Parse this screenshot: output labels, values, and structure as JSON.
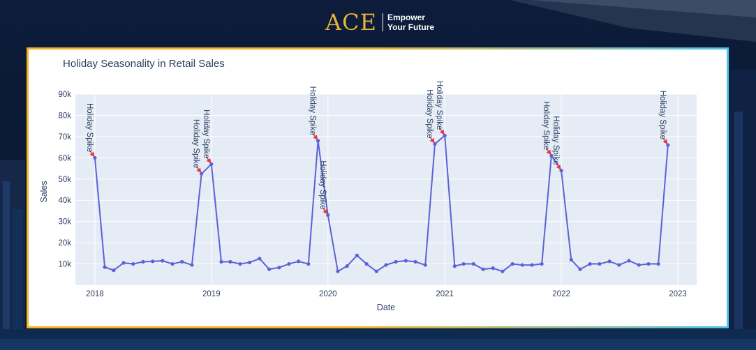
{
  "brand": {
    "logo": "ACE",
    "tagline_line1": "Empower",
    "tagline_line2": "Your Future",
    "logo_color": "#e6b23a"
  },
  "chart_data": {
    "type": "line",
    "title": "Holiday Seasonality in Retail Sales",
    "xlabel": "Date",
    "ylabel": "Sales",
    "ylim": [
      0,
      90000
    ],
    "xlim": [
      "2017-11-01",
      "2023-03-01"
    ],
    "x_ticks": [
      "2018",
      "2019",
      "2020",
      "2021",
      "2022",
      "2023"
    ],
    "y_ticks": [
      "10k",
      "20k",
      "30k",
      "40k",
      "50k",
      "60k",
      "70k",
      "80k",
      "90k"
    ],
    "grid": true,
    "line_color": "#5b62d6",
    "plot_background": "#e5ecf6",
    "arrow_color": "#e8373f",
    "series": [
      {
        "x": [
          "2018-01",
          "2018-02",
          "2018-03",
          "2018-04",
          "2018-05",
          "2018-06",
          "2018-07",
          "2018-08",
          "2018-09",
          "2018-10",
          "2018-11",
          "2018-12",
          "2019-01",
          "2019-02",
          "2019-03",
          "2019-04",
          "2019-05",
          "2019-06",
          "2019-07",
          "2019-08",
          "2019-09",
          "2019-10",
          "2019-11",
          "2019-12",
          "2020-01",
          "2020-02",
          "2020-03",
          "2020-04",
          "2020-05",
          "2020-06",
          "2020-07",
          "2020-08",
          "2020-09",
          "2020-10",
          "2020-11",
          "2020-12",
          "2021-01",
          "2021-02",
          "2021-03",
          "2021-04",
          "2021-05",
          "2021-06",
          "2021-07",
          "2021-08",
          "2021-09",
          "2021-10",
          "2021-11",
          "2021-12",
          "2022-01",
          "2022-02",
          "2022-03",
          "2022-04",
          "2022-05",
          "2022-06",
          "2022-07",
          "2022-08",
          "2022-09",
          "2022-10",
          "2022-11",
          "2022-12"
        ],
        "values": [
          60000,
          8500,
          7000,
          10500,
          10000,
          11000,
          11200,
          11500,
          10000,
          11000,
          9500,
          52500,
          57000,
          11000,
          11000,
          10000,
          10700,
          12500,
          7500,
          8300,
          10000,
          11200,
          10000,
          68000,
          33000,
          6500,
          9000,
          14000,
          10000,
          6500,
          9500,
          11000,
          11500,
          11000,
          9500,
          66500,
          70500,
          9000,
          10000,
          10000,
          7500,
          8000,
          6500,
          10000,
          9500,
          9500,
          10000,
          61000,
          54000,
          12000,
          7500,
          10000,
          10000,
          11200,
          9500,
          11500,
          9500,
          10000,
          10000,
          66000
        ]
      }
    ],
    "annotations": [
      {
        "text": "Holiday Spike",
        "x": "2018-01",
        "y": 60000
      },
      {
        "text": "Holiday Spike",
        "x": "2018-12",
        "y": 52500
      },
      {
        "text": "Holiday Spike",
        "x": "2019-01",
        "y": 57000
      },
      {
        "text": "Holiday Spike",
        "x": "2019-12",
        "y": 68000
      },
      {
        "text": "Holiday Spike",
        "x": "2020-01",
        "y": 33000
      },
      {
        "text": "Holiday Spike",
        "x": "2020-12",
        "y": 66500
      },
      {
        "text": "Holiday Spike",
        "x": "2021-01",
        "y": 70500
      },
      {
        "text": "Holiday Spike",
        "x": "2021-12",
        "y": 61000
      },
      {
        "text": "Holiday Spike",
        "x": "2022-01",
        "y": 54000
      },
      {
        "text": "Holiday Spike",
        "x": "2022-12",
        "y": 66000
      }
    ]
  }
}
